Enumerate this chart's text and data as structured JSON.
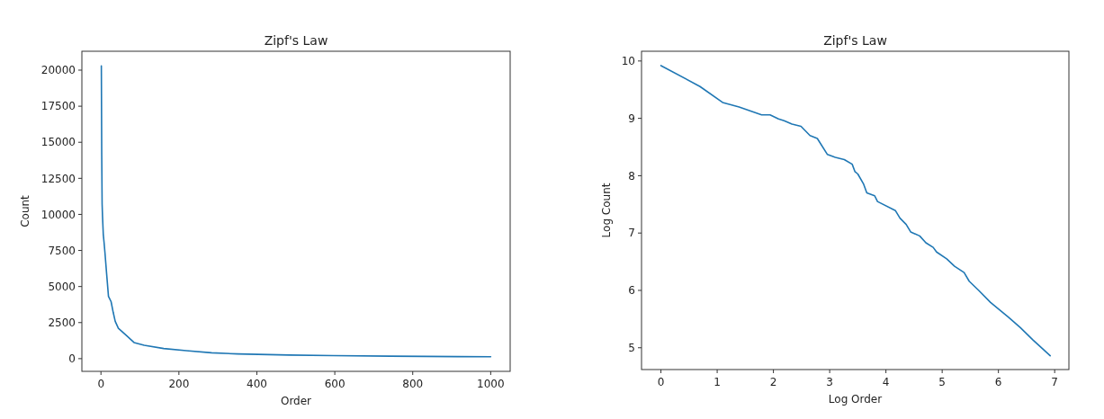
{
  "chart_data": [
    {
      "type": "line",
      "title": "Zipf's Law",
      "xlabel": "Order",
      "ylabel": "Count",
      "x": [
        1,
        2,
        3,
        4,
        6,
        8.1,
        10.3,
        14.2,
        19.3,
        26,
        31.5,
        36.6,
        44.7,
        64.7,
        84.8,
        111,
        161,
        219,
        284,
        351,
        483,
        596,
        742,
        916,
        1000
      ],
      "series": [
        {
          "color": "#1f77b4",
          "values": [
            20300,
            14100,
            10700,
            9880,
            8600,
            8020,
            7330,
            6000,
            4320,
            3950,
            3200,
            2590,
            2100,
            1620,
            1120,
            925,
            700,
            550,
            403,
            327,
            252,
            211,
            171,
            141,
            129
          ]
        }
      ],
      "xlim": [
        -48.95,
        1049.95
      ],
      "ylim": [
        -880,
        21309
      ],
      "xticks": [
        0,
        200,
        400,
        600,
        800,
        1000
      ],
      "yticks": [
        0,
        2500,
        5000,
        7500,
        10000,
        12500,
        15000,
        17500,
        20000
      ]
    },
    {
      "type": "line",
      "title": "Zipf's Law",
      "xlabel": "Log Order",
      "ylabel": "Log Count",
      "x": [
        0,
        0.695,
        1.096,
        1.39,
        1.79,
        1.94,
        2.09,
        2.19,
        2.33,
        2.49,
        2.65,
        2.78,
        2.96,
        3.1,
        3.26,
        3.4,
        3.45,
        3.5,
        3.6,
        3.66,
        3.8,
        3.85,
        4.17,
        4.25,
        4.36,
        4.44,
        4.6,
        4.71,
        4.84,
        4.9,
        5.08,
        5.22,
        5.39,
        5.48,
        5.65,
        5.86,
        6.18,
        6.39,
        6.61,
        6.82,
        6.92
      ],
      "series": [
        {
          "color": "#1f77b4",
          "values": [
            9.92,
            9.555,
            9.277,
            9.198,
            9.06,
            9.06,
            8.99,
            8.96,
            8.9,
            8.86,
            8.7,
            8.65,
            8.37,
            8.32,
            8.28,
            8.2,
            8.07,
            8.03,
            7.86,
            7.7,
            7.65,
            7.55,
            7.39,
            7.26,
            7.15,
            7.02,
            6.95,
            6.83,
            6.75,
            6.67,
            6.55,
            6.42,
            6.31,
            6.16,
            6,
            5.79,
            5.53,
            5.35,
            5.14,
            4.95,
            4.86
          ]
        }
      ],
      "xlim": [
        -0.345,
        7.253
      ],
      "ylim": [
        4.62,
        10.17
      ],
      "xticks": [
        0,
        1,
        2,
        3,
        4,
        5,
        6,
        7
      ],
      "yticks": [
        5,
        6,
        7,
        8,
        9,
        10
      ]
    }
  ]
}
